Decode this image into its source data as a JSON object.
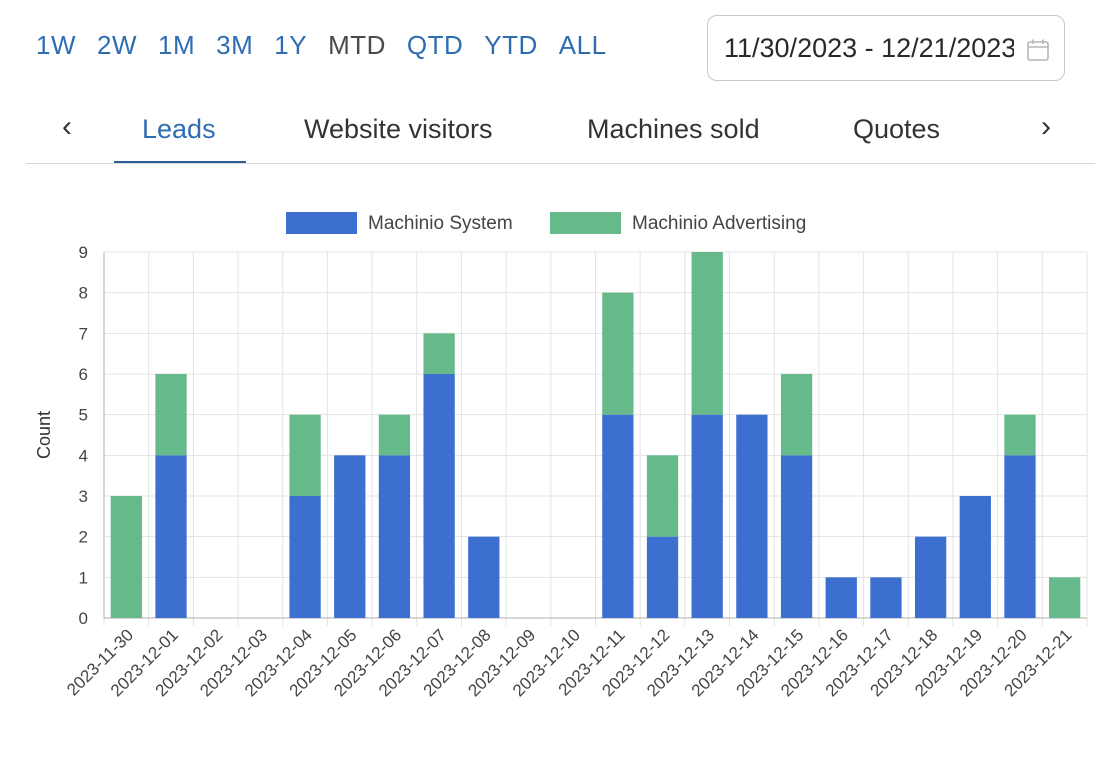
{
  "ranges": [
    "1W",
    "2W",
    "1M",
    "3M",
    "1Y",
    "MTD",
    "QTD",
    "YTD",
    "ALL"
  ],
  "date_range": "11/30/2023 - 12/21/2023",
  "tabs": {
    "prev_icon": "chevron-left-icon",
    "next_icon": "chevron-right-icon",
    "items": [
      "Leads",
      "Website visitors",
      "Machines sold",
      "Quotes"
    ],
    "active": "Leads"
  },
  "colors": {
    "accent": "#2f6db3",
    "series_system": "#3c6fd0",
    "series_advertising": "#66b98a"
  },
  "chart_data": {
    "type": "bar",
    "stacked": true,
    "title": "",
    "xlabel": "",
    "ylabel": "Count",
    "ylim": [
      0,
      9
    ],
    "yticks": [
      0,
      1,
      2,
      3,
      4,
      5,
      6,
      7,
      8,
      9
    ],
    "grid": true,
    "legend_position": "top-center",
    "categories": [
      "2023-11-30",
      "2023-12-01",
      "2023-12-02",
      "2023-12-03",
      "2023-12-04",
      "2023-12-05",
      "2023-12-06",
      "2023-12-07",
      "2023-12-08",
      "2023-12-09",
      "2023-12-10",
      "2023-12-11",
      "2023-12-12",
      "2023-12-13",
      "2023-12-14",
      "2023-12-15",
      "2023-12-16",
      "2023-12-17",
      "2023-12-18",
      "2023-12-19",
      "2023-12-20",
      "2023-12-21"
    ],
    "series": [
      {
        "name": "Machinio System",
        "color": "#3c6fd0",
        "values": [
          0,
          4,
          0,
          0,
          3,
          4,
          4,
          6,
          2,
          0,
          0,
          5,
          2,
          5,
          5,
          4,
          1,
          1,
          2,
          3,
          4,
          0
        ]
      },
      {
        "name": "Machinio Advertising",
        "color": "#66b98a",
        "values": [
          3,
          2,
          0,
          0,
          2,
          0,
          1,
          1,
          0,
          0,
          0,
          3,
          2,
          4,
          0,
          2,
          0,
          0,
          0,
          0,
          1,
          1
        ]
      }
    ]
  }
}
